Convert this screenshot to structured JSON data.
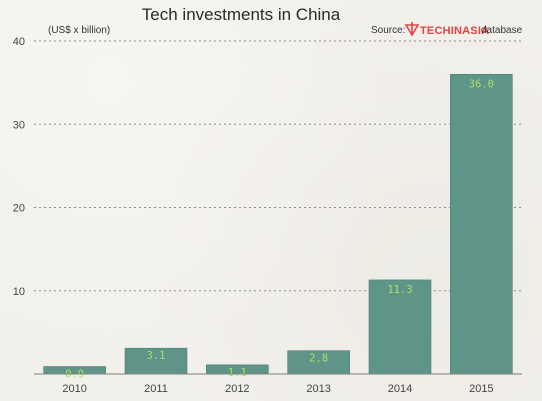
{
  "chart_data": {
    "type": "bar",
    "title": "Tech investments in China",
    "unit_label": "(US$ x billion)",
    "source_prefix": "Source:",
    "source_suffix": "database",
    "source_logo_text": "TECHINASIA",
    "categories": [
      "2010",
      "2011",
      "2012",
      "2013",
      "2014",
      "2015"
    ],
    "values": [
      0.9,
      3.1,
      1.1,
      2.8,
      11.3,
      36.0
    ],
    "value_labels": [
      "0.9",
      "3.1",
      "1.1",
      "2.8",
      "11.3",
      "36.0"
    ],
    "ylim": [
      0,
      40
    ],
    "yticks": [
      10,
      20,
      30,
      40
    ],
    "grid": true,
    "colors": {
      "bar": "#5f9488",
      "bar_label": "#a8e06a",
      "logo": "#e34242",
      "text": "#333333"
    }
  }
}
